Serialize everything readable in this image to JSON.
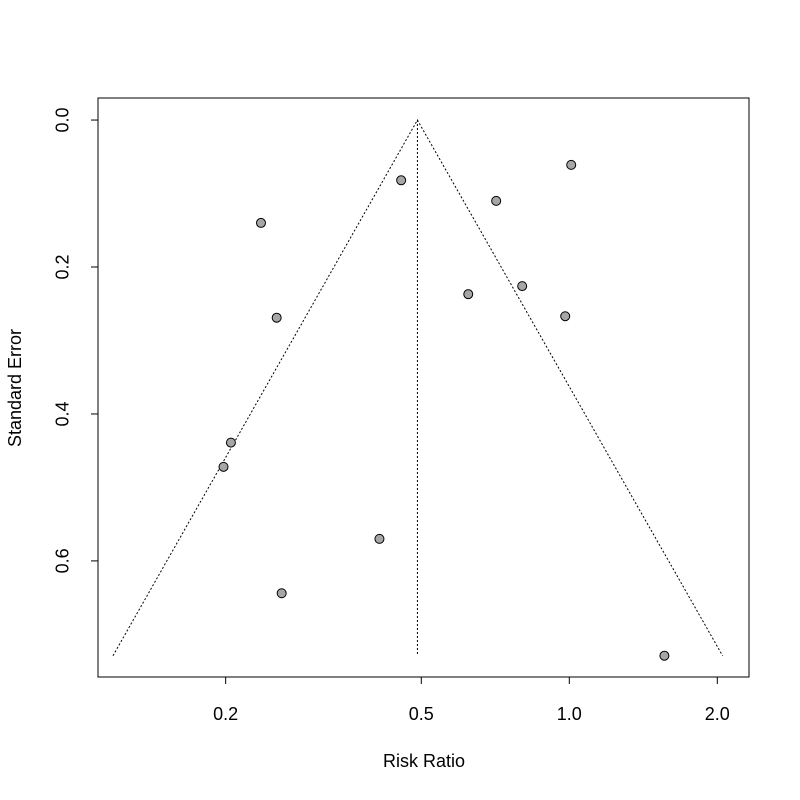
{
  "chart_data": {
    "type": "funnel",
    "xlabel": "Risk Ratio",
    "ylabel": "Standard Error",
    "x": [
      0.455,
      1.009,
      0.236,
      0.71,
      0.802,
      0.623,
      0.981,
      0.254,
      0.205,
      0.198,
      0.411,
      0.26,
      1.561
    ],
    "values": [
      0.082,
      0.061,
      0.14,
      0.11,
      0.226,
      0.237,
      0.267,
      0.269,
      0.439,
      0.472,
      0.57,
      0.644,
      0.729
    ],
    "color": "#a6a6a6",
    "xscale": "log",
    "xlim": [
      0.11,
      2.32
    ],
    "ylim": [
      -0.03,
      0.758
    ],
    "y_reversed": true,
    "xticks": [
      0.2,
      0.5,
      {
        "value": 1,
        "label": "1.0"
      },
      {
        "value": 2,
        "label": "2.0"
      }
    ],
    "yticks": [
      {
        "value": 0,
        "label": "0.0"
      },
      0.2,
      0.4,
      0.6
    ],
    "funnel": {
      "x": [
        0.118,
        0.491,
        2.05
      ],
      "y": [
        0.729,
        0,
        0.729
      ]
    },
    "reference_line": {
      "x": 0.491,
      "y": [
        0,
        0.729
      ]
    }
  }
}
